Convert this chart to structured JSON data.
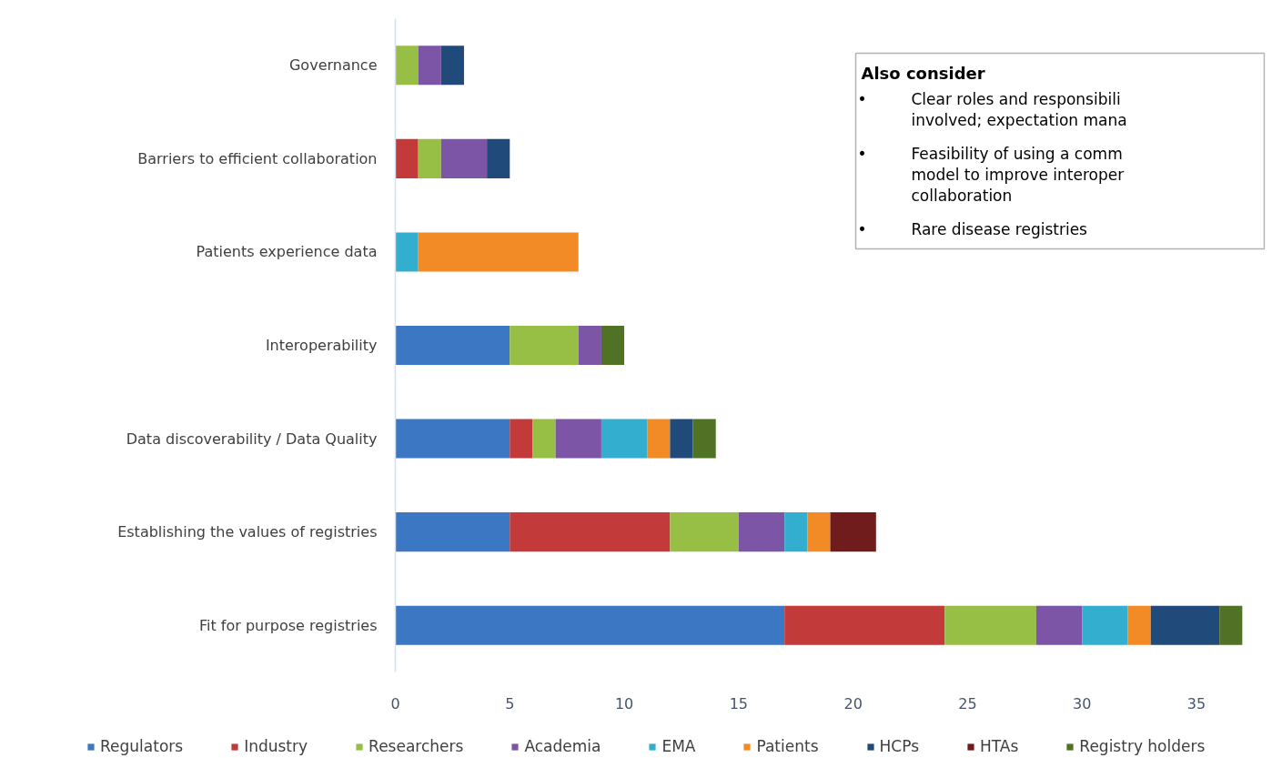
{
  "chart_data": {
    "type": "bar",
    "orientation": "horizontal",
    "stacked": true,
    "categories": [
      "Governance",
      "Barriers to efficient collaboration",
      "Patients experience data",
      "Interoperability",
      "Data discoverability / Data Quality",
      "Establishing the values of registries",
      "Fit for purpose registries"
    ],
    "series": [
      {
        "name": "Regulators",
        "color": "#3c77c3",
        "values": [
          0,
          0,
          0,
          5,
          5,
          5,
          17
        ]
      },
      {
        "name": "Industry",
        "color": "#c23a3a",
        "values": [
          0,
          1,
          0,
          0,
          1,
          7,
          7
        ]
      },
      {
        "name": "Researchers",
        "color": "#98bf45",
        "values": [
          1,
          1,
          0,
          3,
          1,
          3,
          4
        ]
      },
      {
        "name": "Academia",
        "color": "#7d55a6",
        "values": [
          1,
          2,
          0,
          1,
          2,
          2,
          2
        ]
      },
      {
        "name": "EMA",
        "color": "#33aecf",
        "values": [
          0,
          0,
          1,
          0,
          2,
          1,
          2
        ]
      },
      {
        "name": "Patients",
        "color": "#f28b26",
        "values": [
          0,
          0,
          7,
          0,
          1,
          1,
          1
        ]
      },
      {
        "name": "HCPs",
        "color": "#1f4a7a",
        "values": [
          1,
          1,
          0,
          0,
          1,
          0,
          3
        ]
      },
      {
        "name": "HTAs",
        "color": "#701c1c",
        "values": [
          0,
          0,
          0,
          0,
          0,
          2,
          0
        ]
      },
      {
        "name": "Registry holders",
        "color": "#507224",
        "values": [
          0,
          0,
          0,
          1,
          1,
          0,
          1
        ]
      }
    ],
    "xlim": [
      0,
      38
    ],
    "xticks": [
      0,
      5,
      10,
      15,
      20,
      25,
      30,
      35
    ],
    "legend": "bottom",
    "annotations": [
      "Also consider",
      "• Clear roles and responsibili\ninvolved; expectation mana",
      "• Feasibility of using a comm\nmodel to improve interoper\ncollaboration",
      "• Rare disease registries"
    ]
  }
}
